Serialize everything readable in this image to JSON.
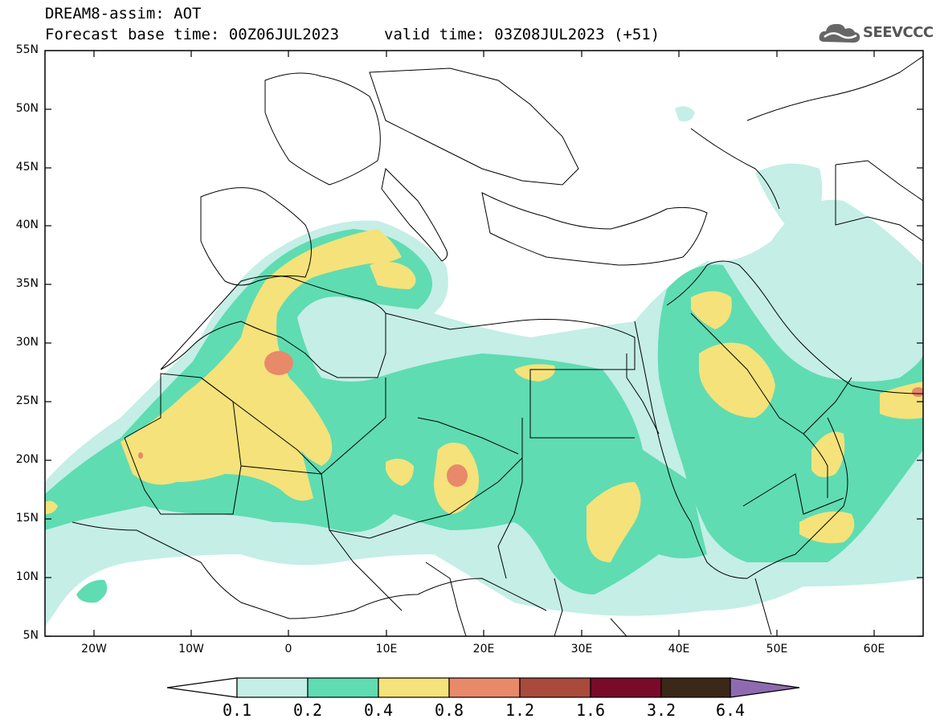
{
  "title": {
    "line1": "DREAM8-assim: AOT",
    "line2": "Forecast base time: 00Z06JUL2023",
    "valid": "valid time: 03Z08JUL2023 (+51)"
  },
  "logo": {
    "text": "SEEVCCC",
    "icon": "cloud-icon"
  },
  "map": {
    "lon_range": [
      -25,
      65
    ],
    "lat_range": [
      5,
      55
    ],
    "lat_labels": [
      "5N",
      "10N",
      "15N",
      "20N",
      "25N",
      "30N",
      "35N",
      "40N",
      "45N",
      "50N",
      "55N"
    ],
    "lon_labels": [
      "20W",
      "10W",
      "0",
      "10E",
      "20E",
      "30E",
      "40E",
      "50E",
      "60E"
    ]
  },
  "colorbar": {
    "levels": [
      "0.1",
      "0.2",
      "0.4",
      "0.8",
      "1.2",
      "1.6",
      "3.2",
      "6.4"
    ],
    "colors": [
      "#c4eee6",
      "#5fdcb2",
      "#f5e27a",
      "#e8896a",
      "#a94a3c",
      "#7a0a2a",
      "#3c2818",
      "#8e6bb0"
    ]
  }
}
